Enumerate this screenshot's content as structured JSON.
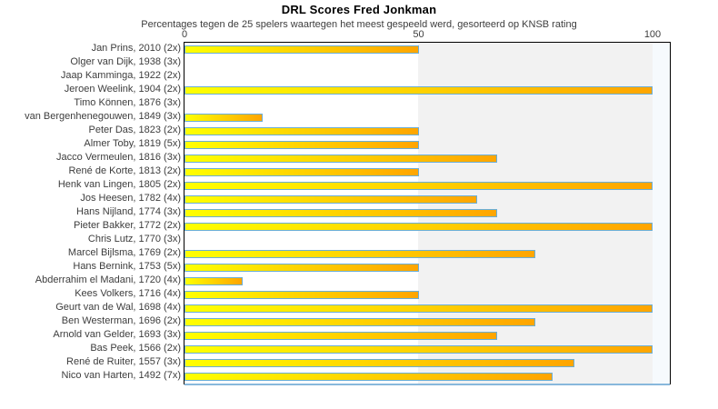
{
  "title": "DRL Scores Fred Jonkman",
  "subtitle": "Percentages tegen de 25 spelers waartegen het meest gespeeld werd, gesorteerd op KNSB rating",
  "colors": {
    "bar_gradient_start": "#ffff00",
    "bar_gradient_end": "#ffa500",
    "bar_border": "#6aaed6",
    "band_0_50": "#ffffff",
    "band_50_100": "#f2f2f2",
    "band_over_100": "#f6fafd",
    "plot_border": "#000000",
    "axis_underline": "#88b8dc",
    "text": "#3d3d3d"
  },
  "chart_data": {
    "type": "bar",
    "orientation": "horizontal",
    "title": "DRL Scores Fred Jonkman",
    "subtitle": "Percentages tegen de 25 spelers waartegen het meest gespeeld werd, gesorteerd op KNSB rating",
    "xlabel": "",
    "ylabel": "",
    "xlim": [
      0,
      100
    ],
    "xticks": [
      {
        "value": 0,
        "label": "0"
      },
      {
        "value": 50,
        "label": "50"
      },
      {
        "value": 100,
        "label": "100"
      }
    ],
    "grid": false,
    "legend": "none",
    "categories": [
      "Jan Prins, 2010 (2x)",
      "Olger van Dijk, 1938 (3x)",
      "Jaap Kamminga, 1922 (2x)",
      "Jeroen Weelink, 1904 (2x)",
      "Timo Können, 1876 (3x)",
      "van Bergenhenegouwen, 1849 (3x)",
      "Peter Das, 1823 (2x)",
      "Almer Toby, 1819 (5x)",
      "Jacco Vermeulen, 1816 (3x)",
      "René de Korte, 1813 (2x)",
      "Henk van Lingen, 1805 (2x)",
      "Jos Heesen, 1782 (4x)",
      "Hans Nijland, 1774 (3x)",
      "Pieter Bakker, 1772 (2x)",
      "Chris Lutz, 1770 (3x)",
      "Marcel Bijlsma, 1769 (2x)",
      "Hans Bernink, 1753 (5x)",
      "Abderrahim el Madani, 1720 (4x)",
      "Kees Volkers, 1716 (4x)",
      "Geurt van de Wal, 1698 (4x)",
      "Ben Westerman, 1696 (2x)",
      "Arnold van Gelder, 1693 (3x)",
      "Bas Peek, 1566 (2x)",
      "René de Ruiter, 1557 (3x)",
      "Nico van Harten, 1492 (7x)"
    ],
    "values": [
      50,
      0,
      0,
      100,
      0,
      16.7,
      50,
      50,
      66.7,
      50,
      100,
      62.5,
      66.7,
      100,
      0,
      75,
      50,
      12.5,
      50,
      100,
      75,
      66.7,
      100,
      83.3,
      78.6
    ]
  }
}
